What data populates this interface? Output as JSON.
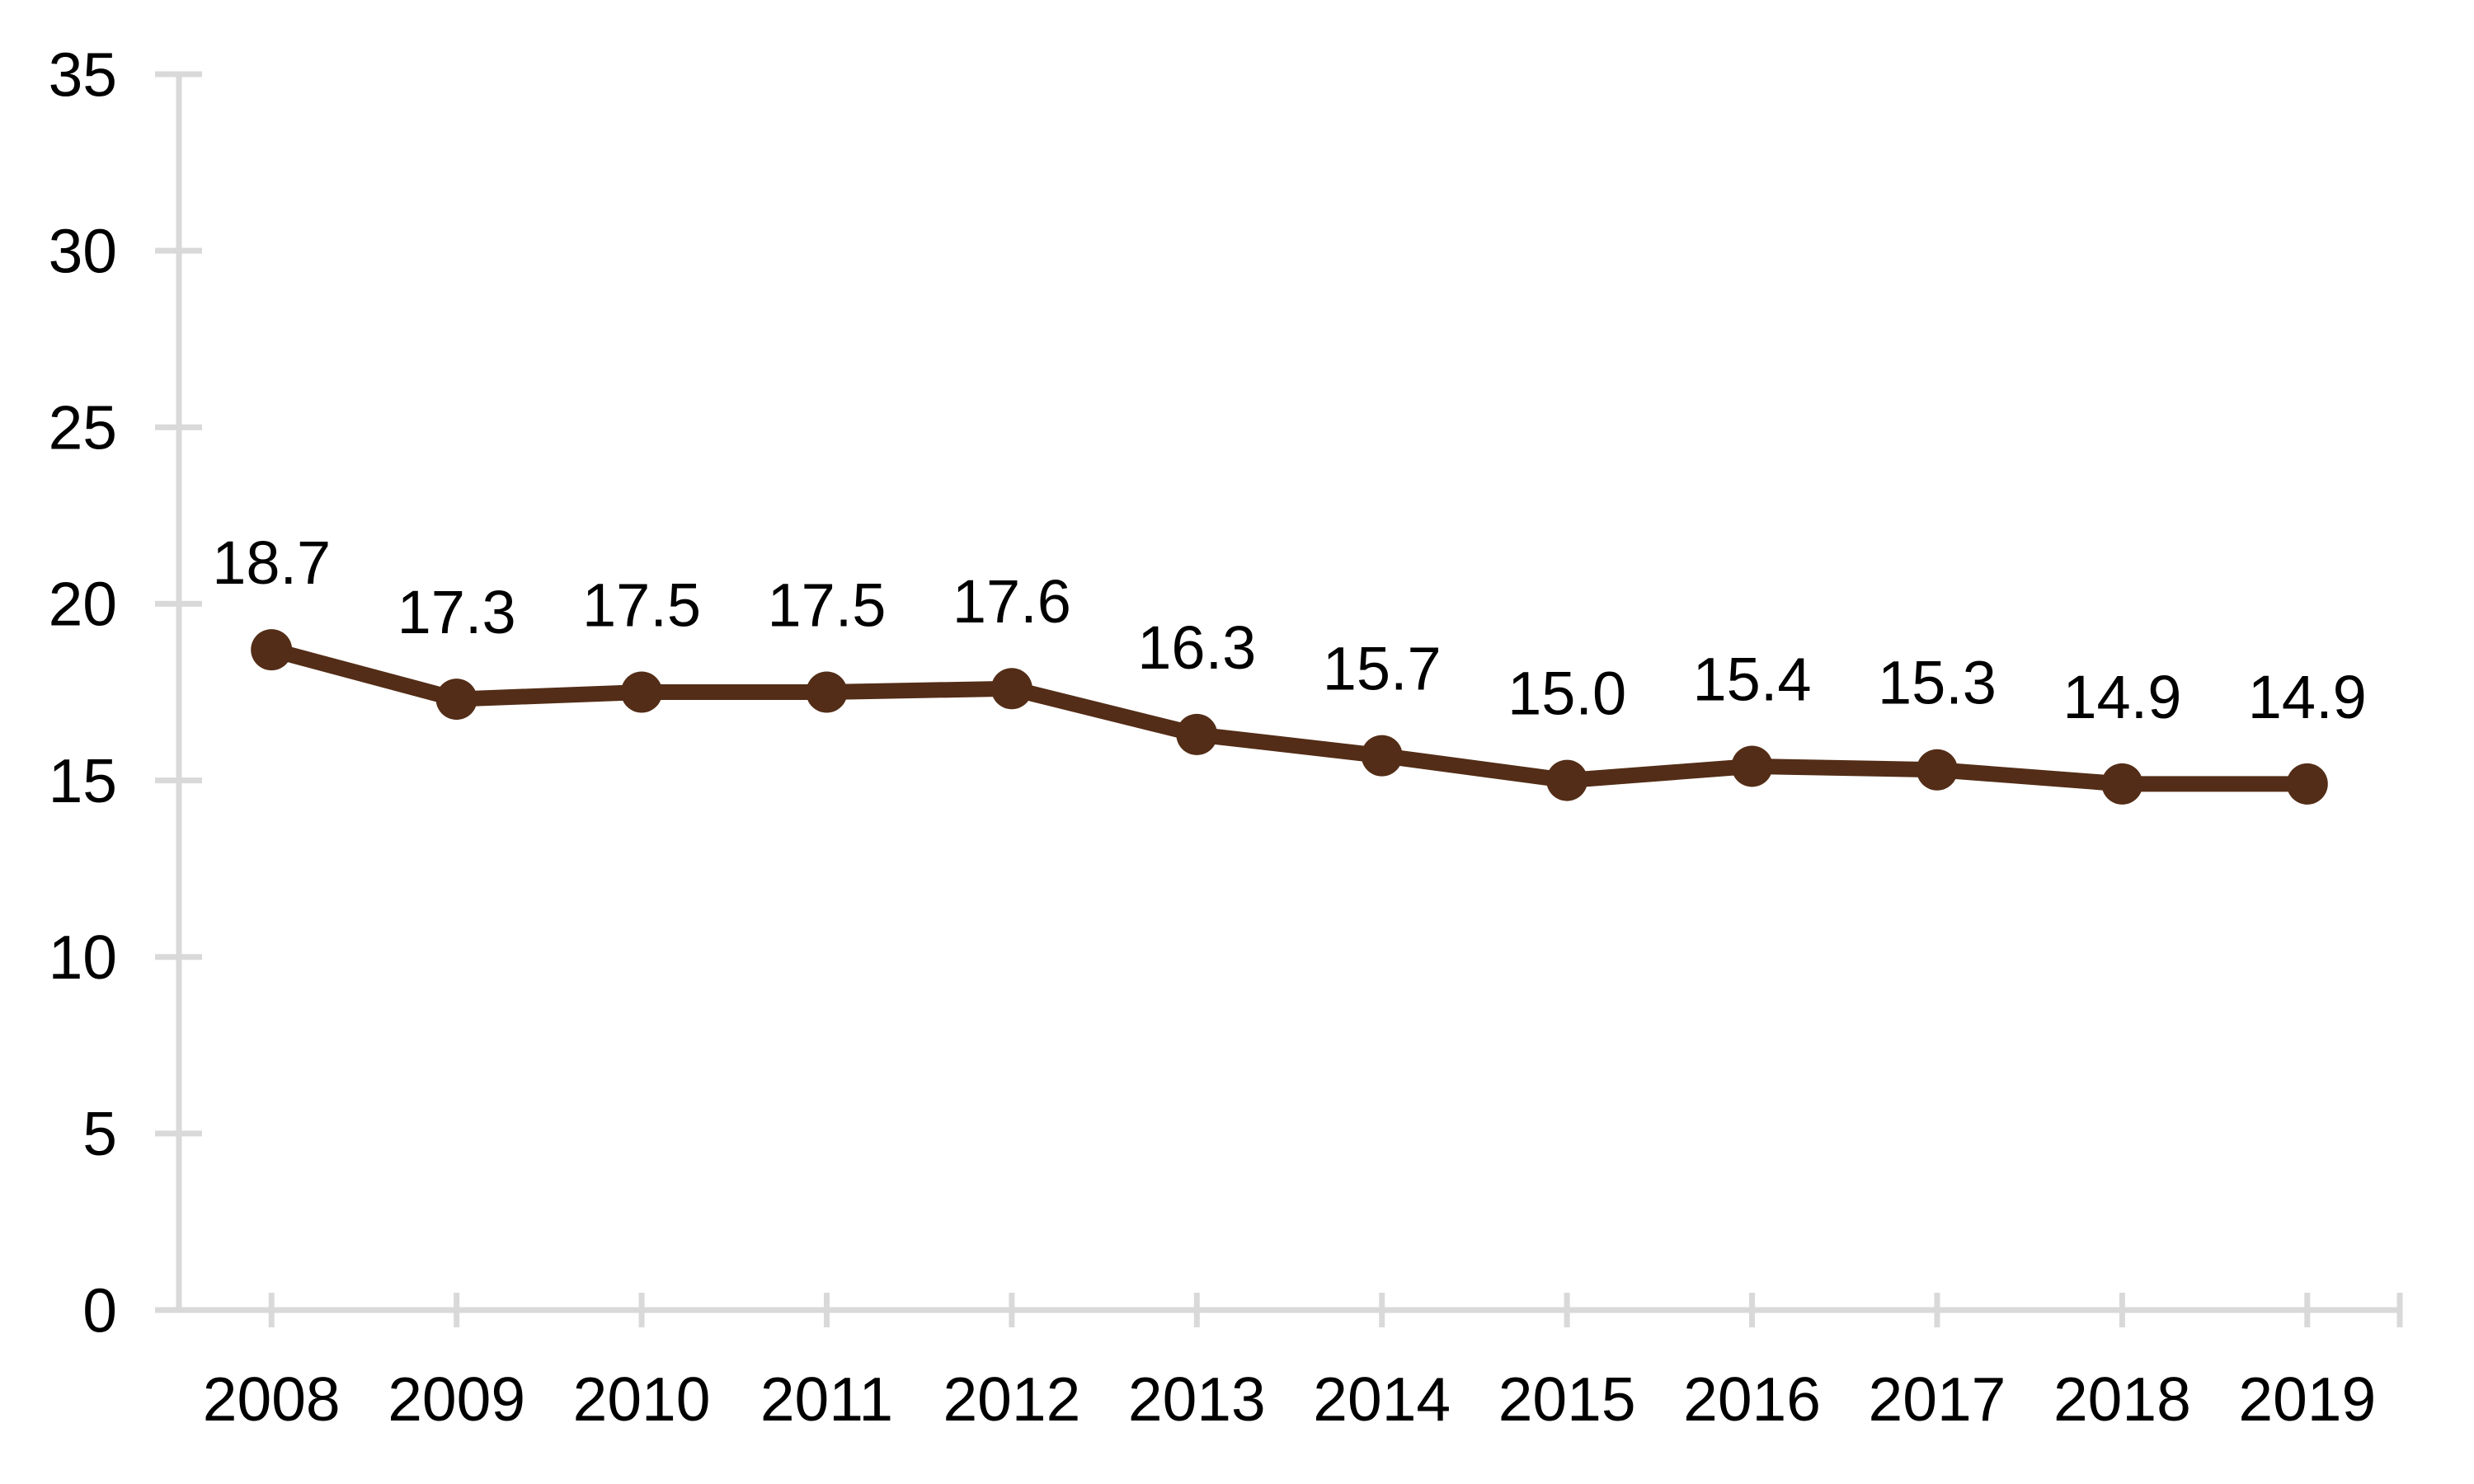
{
  "chart_data": {
    "type": "line",
    "title": "",
    "xlabel": "",
    "ylabel": "",
    "categories": [
      "2008",
      "2009",
      "2010",
      "2011",
      "2012",
      "2013",
      "2014",
      "2015",
      "2016",
      "2017",
      "2018",
      "2019"
    ],
    "series": [
      {
        "name": "series-1",
        "values": [
          18.7,
          17.3,
          17.5,
          17.5,
          17.6,
          16.3,
          15.7,
          15.0,
          15.4,
          15.3,
          14.9,
          14.9
        ],
        "data_labels": [
          "18.7",
          "17.3",
          "17.5",
          "17.5",
          "17.6",
          "16.3",
          "15.7",
          "15.0",
          "15.4",
          "15.3",
          "14.9",
          "14.9"
        ]
      }
    ],
    "ylim": [
      0,
      35
    ],
    "yticks": [
      0,
      5,
      10,
      15,
      20,
      25,
      30,
      35
    ],
    "ytick_labels": [
      "0",
      "5",
      "10",
      "15",
      "20",
      "25",
      "30",
      "35"
    ],
    "grid": false,
    "legend_position": "none",
    "marker": "circle",
    "colors": {
      "series_line": "#532d17",
      "series_marker": "#532d17",
      "axis": "#d9d9d9",
      "tick": "#d9d9d9",
      "axis_label": "#000000",
      "data_label": "#000000",
      "background": "#ffffff"
    }
  }
}
